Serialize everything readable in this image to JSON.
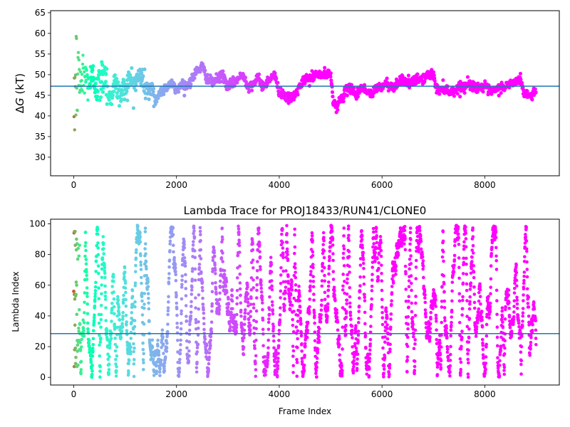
{
  "chart_data": [
    {
      "type": "scatter",
      "title": "",
      "xlabel": "",
      "ylabel": "ΔG (kT)",
      "ylabel_prefix": "Δ",
      "ylabel_var": "G",
      "ylabel_unit": " (kT)",
      "xlim": [
        -450,
        9450
      ],
      "ylim": [
        25.5,
        65.5
      ],
      "xticks": [
        0,
        2000,
        4000,
        6000,
        8000
      ],
      "xtick_labels": [
        "0",
        "2000",
        "4000",
        "6000",
        "8000"
      ],
      "yticks": [
        30,
        35,
        40,
        45,
        50,
        55,
        60,
        65
      ],
      "ytick_labels": [
        "30",
        "35",
        "40",
        "45",
        "50",
        "55",
        "60",
        "65"
      ],
      "hline": 47.2,
      "hline_color": "#1f77b4",
      "colormap": "rainbow (reversed along frame index)",
      "n_frames": 9000,
      "keypoints_x": [
        0,
        10,
        30,
        60,
        100,
        150,
        200,
        300,
        400,
        500,
        600,
        700,
        800,
        900,
        1000,
        1100,
        1200,
        1300,
        1400,
        1500,
        1600,
        1700,
        1800,
        1900,
        2000,
        2100,
        2200,
        2300,
        2400,
        2500,
        2600,
        2700,
        2800,
        2900,
        3000,
        3100,
        3200,
        3300,
        3400,
        3500,
        3600,
        3700,
        3800,
        3900,
        4000,
        4100,
        4200,
        4300,
        4400,
        4500,
        4600,
        4700,
        4800,
        4900,
        5000,
        5050,
        5100,
        5200,
        5300,
        5400,
        5500,
        5600,
        5700,
        5800,
        5900,
        6000,
        6100,
        6200,
        6300,
        6400,
        6500,
        6600,
        6700,
        6800,
        6900,
        7000,
        7050,
        7100,
        7200,
        7300,
        7400,
        7500,
        7600,
        7700,
        7800,
        7900,
        8000,
        8100,
        8200,
        8300,
        8400,
        8500,
        8600,
        8700,
        8750,
        8800,
        8900,
        9000
      ],
      "keypoints_y": [
        47,
        46,
        48,
        47,
        49,
        48,
        50,
        48,
        49,
        47,
        51,
        44,
        48,
        45,
        47,
        49,
        48,
        50,
        47,
        46,
        44,
        46,
        47,
        48,
        46,
        48,
        47,
        49,
        51,
        52,
        49,
        48,
        49,
        50,
        47,
        48,
        49,
        50,
        47,
        48,
        49,
        47,
        49,
        50,
        46,
        45,
        44,
        45,
        47,
        49,
        49,
        50,
        50,
        50,
        50,
        44,
        42,
        44,
        46,
        47,
        45,
        47,
        46,
        45,
        47,
        47,
        48,
        47,
        48,
        49,
        48,
        48,
        49,
        49,
        50,
        50,
        47,
        46,
        47,
        46,
        46,
        47,
        47,
        48,
        47,
        47,
        47,
        46,
        46,
        47,
        47,
        48,
        48,
        49,
        46,
        45,
        45,
        46
      ],
      "amplitude_note": "scatter spread around the trace shrinks with frame index",
      "colors": {
        "hline": "#1f77b4"
      }
    },
    {
      "type": "scatter",
      "title": "Lambda Trace for PROJ18433/RUN41/CLONE0",
      "xlabel": "Frame Index",
      "ylabel": "Lambda Index",
      "xlim": [
        -450,
        9450
      ],
      "ylim": [
        -5,
        103
      ],
      "xticks": [
        0,
        2000,
        4000,
        6000,
        8000
      ],
      "xtick_labels": [
        "0",
        "2000",
        "4000",
        "6000",
        "8000"
      ],
      "yticks": [
        0,
        20,
        40,
        60,
        80,
        100
      ],
      "ytick_labels": [
        "0",
        "20",
        "40",
        "60",
        "80",
        "100"
      ],
      "hline": 28.5,
      "hline_color": "#1f77b4",
      "colormap": "rainbow (reversed along frame index)",
      "n_frames": 9000,
      "lambda_range": [
        0,
        99
      ]
    }
  ]
}
